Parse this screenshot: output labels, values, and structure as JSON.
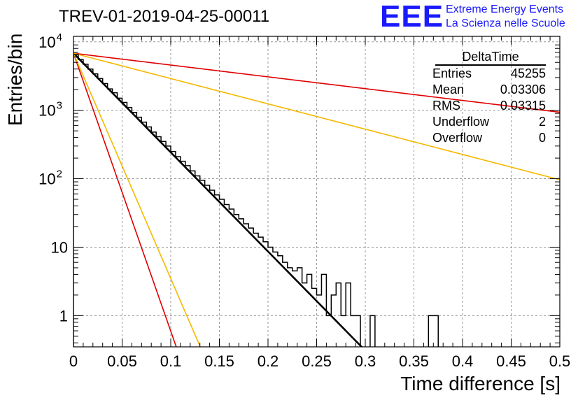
{
  "header": {
    "title": "TREV-01-2019-04-25-00011",
    "logo_text": "EEE",
    "logo_line1": "Extreme Energy Events",
    "logo_line2": "La Scienza nelle Scuole",
    "logo_color": "#1a1aff"
  },
  "stats_box": {
    "title": "DeltaTime",
    "rows": [
      {
        "label": "Entries",
        "value": "45255"
      },
      {
        "label": "Mean",
        "value": "0.03306"
      },
      {
        "label": "RMS",
        "value": "0.03315"
      },
      {
        "label": "Underflow",
        "value": "2"
      },
      {
        "label": "Overflow",
        "value": "0"
      }
    ]
  },
  "chart_data": {
    "type": "line",
    "title": "TREV-01-2019-04-25-00011",
    "xlabel": "Time difference [s]",
    "ylabel": "Entries/bin",
    "xlim": [
      0,
      0.5
    ],
    "ylim": [
      0.35,
      12000
    ],
    "y_scale": "log",
    "grid": true,
    "x_tick_labels": [
      "0",
      "0.05",
      "0.1",
      "0.15",
      "0.2",
      "0.25",
      "0.3",
      "0.35",
      "0.4",
      "0.45",
      "0.5"
    ],
    "x_ticks": [
      0,
      0.05,
      0.1,
      0.15,
      0.2,
      0.25,
      0.3,
      0.35,
      0.4,
      0.45,
      0.5
    ],
    "y_ticks": [
      1,
      10,
      100,
      1000,
      10000
    ],
    "y_tick_labels": [
      {
        "base": "1",
        "exp": ""
      },
      {
        "base": "10",
        "exp": ""
      },
      {
        "base": "10",
        "exp": "2"
      },
      {
        "base": "10",
        "exp": "3"
      },
      {
        "base": "10",
        "exp": "4"
      }
    ],
    "histogram": {
      "name": "DeltaTime",
      "color": "#000000",
      "bin_width": 0.005,
      "x_start": 0,
      "values": [
        6500,
        5500,
        4700,
        4000,
        3400,
        2900,
        2450,
        2050,
        1800,
        1500,
        1300,
        1100,
        930,
        790,
        670,
        570,
        480,
        410,
        350,
        300,
        250,
        210,
        180,
        155,
        130,
        110,
        95,
        80,
        68,
        58,
        50,
        42,
        36,
        30,
        26,
        22,
        19,
        16,
        14,
        12,
        10,
        8.5,
        7.5,
        6,
        5,
        4.5,
        5,
        3,
        4,
        2.5,
        2,
        4,
        1,
        2,
        3,
        1,
        3,
        1,
        1,
        0,
        0,
        1,
        0,
        0,
        0,
        0,
        0,
        0,
        0,
        0,
        0,
        0,
        0,
        1,
        1,
        0,
        0,
        0,
        0,
        0,
        0,
        0,
        0,
        0,
        0,
        0,
        0,
        0,
        0,
        0,
        0,
        0,
        0,
        0,
        0,
        0,
        0,
        0,
        0,
        0
      ]
    },
    "series": [
      {
        "color": "#000000",
        "y0": 6800,
        "tau": 0.03
      },
      {
        "color": "#e00000",
        "y0": 6800,
        "tau": 0.0107
      },
      {
        "color": "#f5b800",
        "y0": 6800,
        "tau": 0.0132
      },
      {
        "color": "#e00000",
        "y0": 6800,
        "tau": 0.252
      },
      {
        "color": "#f5b800",
        "y0": 6800,
        "tau": 0.1175
      }
    ]
  }
}
